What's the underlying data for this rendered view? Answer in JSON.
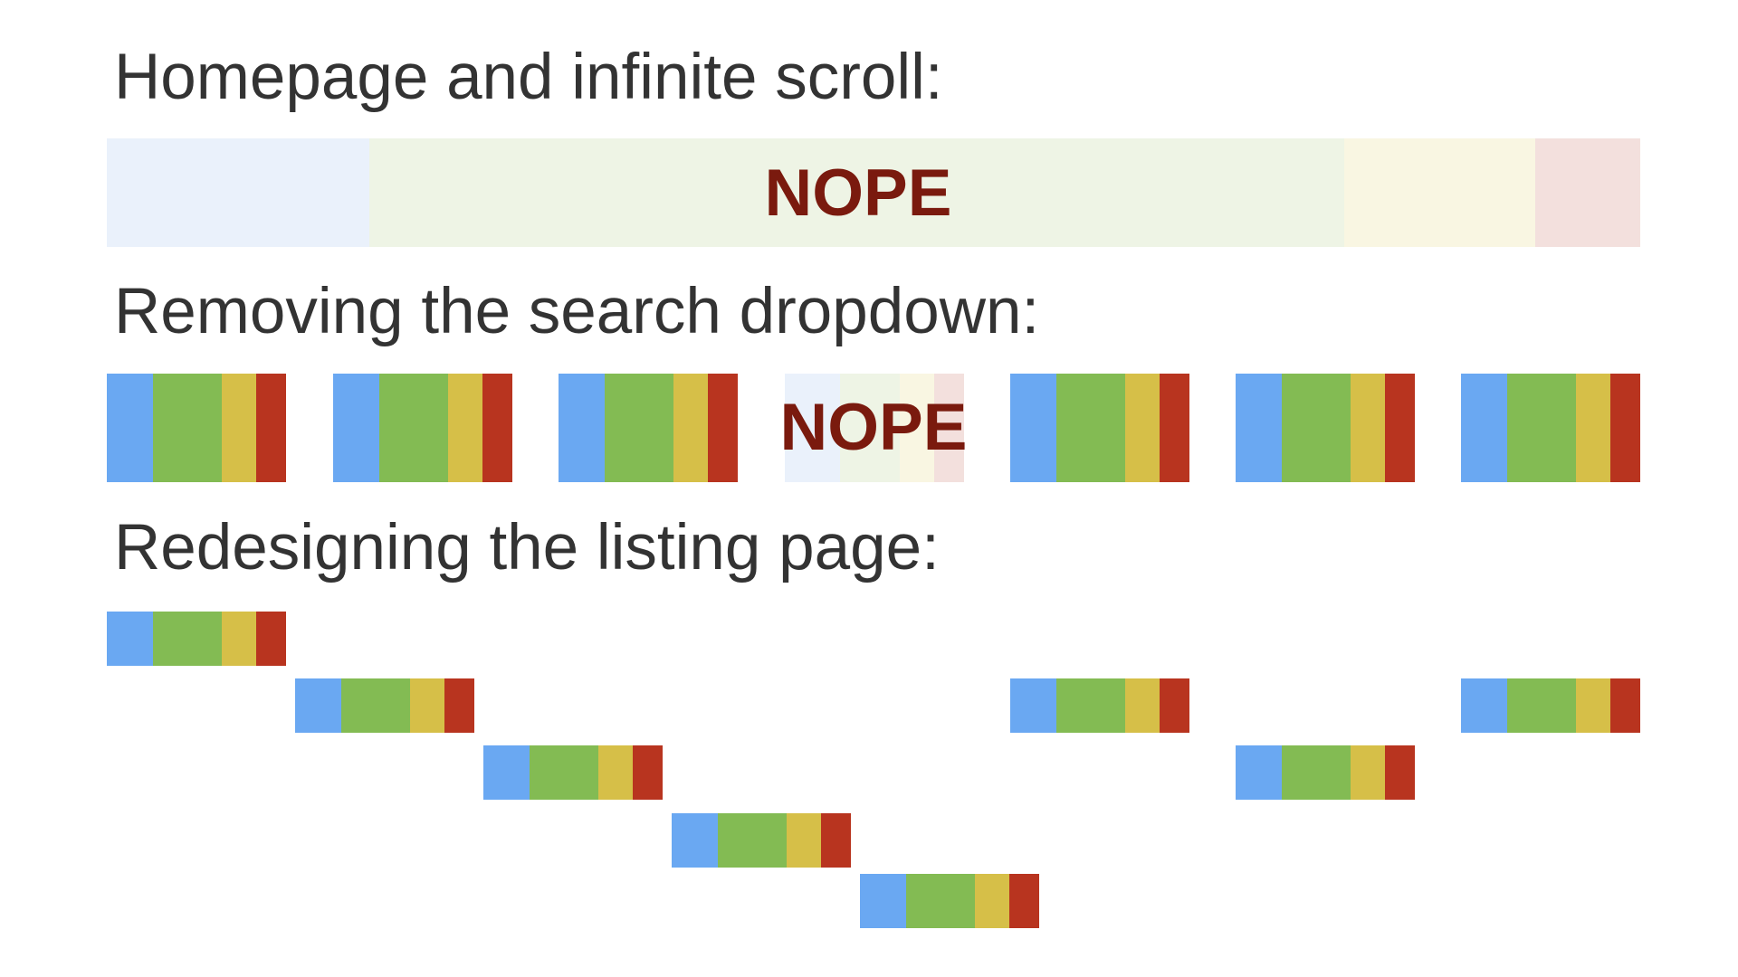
{
  "sections": [
    {
      "title": "Homepage and infinite scroll:",
      "overlay": "NOPE"
    },
    {
      "title": "Removing the search dropdown:",
      "overlay": "NOPE"
    },
    {
      "title": "Redesigning the listing page:"
    }
  ],
  "colors": {
    "blue": "#6aa8f2",
    "green": "#83bb53",
    "yellow": "#d6bf48",
    "red": "#b8341f",
    "nope_text": "#7a1a0e",
    "heading_text": "#333333"
  }
}
